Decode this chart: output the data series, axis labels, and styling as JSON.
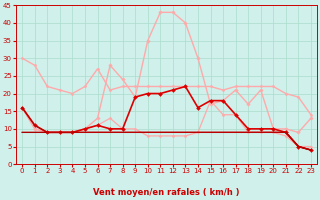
{
  "xlabel": "Vent moyen/en rafales ( km/h )",
  "background_color": "#cff0eb",
  "grid_color": "#aaddcc",
  "xlim": [
    -0.5,
    23.5
  ],
  "ylim": [
    0,
    45
  ],
  "yticks": [
    0,
    5,
    10,
    15,
    20,
    25,
    30,
    35,
    40,
    45
  ],
  "xticks": [
    0,
    1,
    2,
    3,
    4,
    5,
    6,
    7,
    8,
    9,
    10,
    11,
    12,
    13,
    14,
    15,
    16,
    17,
    18,
    19,
    20,
    21,
    22,
    23
  ],
  "series": [
    {
      "x": [
        0,
        1,
        2,
        3,
        4,
        5,
        6,
        7,
        8,
        9,
        10,
        11,
        12,
        13,
        14,
        15,
        16,
        17,
        18,
        19,
        20,
        21,
        22,
        23
      ],
      "y": [
        30,
        28,
        22,
        21,
        20,
        22,
        27,
        21,
        22,
        22,
        22,
        22,
        22,
        22,
        22,
        22,
        21,
        22,
        22,
        22,
        22,
        20,
        19,
        14
      ],
      "color": "#ffaaaa",
      "linewidth": 1.0,
      "marker": "D",
      "markersize": 1.5
    },
    {
      "x": [
        0,
        1,
        2,
        3,
        4,
        5,
        6,
        7,
        8,
        9,
        10,
        11,
        12,
        13,
        14,
        15,
        16,
        17,
        18,
        19,
        20,
        21,
        22,
        23
      ],
      "y": [
        16,
        10,
        9,
        9,
        9,
        10,
        11,
        13,
        10,
        10,
        8,
        8,
        8,
        8,
        9,
        18,
        14,
        14,
        9,
        9,
        9,
        8,
        5,
        5
      ],
      "color": "#ffaaaa",
      "linewidth": 0.9,
      "marker": "D",
      "markersize": 1.5
    },
    {
      "x": [
        0,
        1,
        2,
        3,
        4,
        5,
        6,
        7,
        8,
        9,
        10,
        11,
        12,
        13,
        14,
        15,
        16,
        17,
        18,
        19,
        20,
        21,
        22,
        23
      ],
      "y": [
        16,
        10,
        9,
        9,
        9,
        10,
        13,
        28,
        24,
        19,
        35,
        43,
        43,
        40,
        30,
        17,
        18,
        21,
        17,
        21,
        10,
        10,
        9,
        13
      ],
      "color": "#ffaaaa",
      "linewidth": 1.0,
      "marker": "D",
      "markersize": 1.8
    },
    {
      "x": [
        0,
        1,
        2,
        3,
        4,
        5,
        6,
        7,
        8,
        9,
        10,
        11,
        12,
        13,
        14,
        15,
        16,
        17,
        18,
        19,
        20,
        21,
        22,
        23
      ],
      "y": [
        16,
        11,
        9,
        9,
        9,
        10,
        11,
        10,
        10,
        19,
        20,
        20,
        21,
        22,
        16,
        18,
        18,
        14,
        10,
        10,
        10,
        9,
        5,
        4
      ],
      "color": "#dd0000",
      "linewidth": 1.2,
      "marker": "D",
      "markersize": 2.0
    },
    {
      "x": [
        0,
        1,
        2,
        3,
        4,
        5,
        6,
        7,
        8,
        9,
        10,
        11,
        12,
        13,
        14,
        15,
        16,
        17,
        18,
        19,
        20,
        21,
        22,
        23
      ],
      "y": [
        9,
        9,
        9,
        9,
        9,
        9,
        9,
        9,
        9,
        9,
        9,
        9,
        9,
        9,
        9,
        9,
        9,
        9,
        9,
        9,
        9,
        9,
        5,
        4
      ],
      "color": "#cc0000",
      "linewidth": 0.9,
      "marker": null,
      "markersize": 0
    },
    {
      "x": [
        0,
        1,
        2,
        3,
        4,
        5,
        6,
        7,
        8,
        9,
        10,
        11,
        12,
        13,
        14,
        15,
        16,
        17,
        18,
        19,
        20,
        21,
        22,
        23
      ],
      "y": [
        9,
        9,
        9,
        9,
        9,
        9,
        9,
        9,
        9,
        9,
        9,
        9,
        9,
        9,
        9,
        9,
        9,
        9,
        9,
        9,
        9,
        9,
        5,
        4
      ],
      "color": "#aa0000",
      "linewidth": 0.8,
      "marker": null,
      "markersize": 0
    },
    {
      "x": [
        0,
        1,
        2,
        3,
        4,
        5,
        6,
        7,
        8,
        9,
        10,
        11,
        12,
        13,
        14,
        15,
        16,
        17,
        18,
        19,
        20,
        21,
        22,
        23
      ],
      "y": [
        16,
        11,
        9,
        9,
        9,
        9,
        9,
        9,
        9,
        9,
        9,
        9,
        9,
        9,
        9,
        9,
        9,
        9,
        9,
        9,
        9,
        9,
        5,
        4
      ],
      "color": "#bb0000",
      "linewidth": 0.8,
      "marker": null,
      "markersize": 0
    }
  ],
  "arrow_color": "#cc0000",
  "tick_label_color": "#cc0000",
  "xlabel_color": "#cc0000",
  "xlabel_fontsize": 6,
  "tick_fontsize": 5
}
